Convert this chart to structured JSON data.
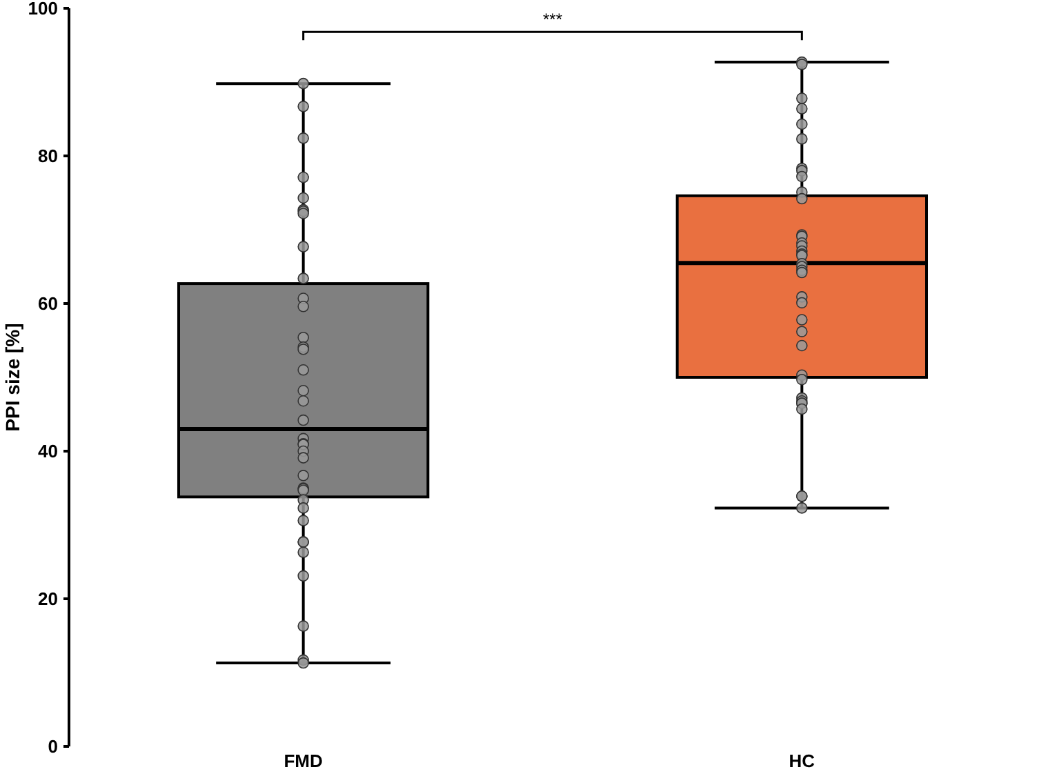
{
  "chart_data": {
    "type": "box",
    "ylabel": "PPI size [%]",
    "categories": [
      "FMD",
      "HC"
    ],
    "colors": [
      "#808080",
      "#e97040"
    ],
    "boxes": [
      {
        "low": 11.3,
        "q1": 33.8,
        "median": 43,
        "q3": 62.7,
        "high": 89.8
      },
      {
        "low": 32.3,
        "q1": 50,
        "median": 65.5,
        "q3": 74.6,
        "high": 92.7
      }
    ],
    "series": [
      {
        "type": "scatter",
        "color": "#9a9a9a",
        "x": [
          "FMD",
          "FMD",
          "FMD",
          "FMD",
          "FMD",
          "FMD",
          "FMD",
          "FMD",
          "FMD",
          "FMD",
          "FMD",
          "FMD",
          "FMD",
          "FMD",
          "FMD",
          "FMD",
          "FMD",
          "FMD",
          "FMD",
          "FMD",
          "FMD",
          "FMD",
          "FMD",
          "FMD",
          "FMD",
          "FMD",
          "FMD",
          "FMD",
          "FMD",
          "FMD",
          "FMD",
          "FMD",
          "FMD",
          "FMD",
          "FMD",
          "FMD",
          "FMD",
          "FMD",
          "HC",
          "HC",
          "HC",
          "HC",
          "HC",
          "HC",
          "HC",
          "HC",
          "HC",
          "HC",
          "HC",
          "HC",
          "HC",
          "HC",
          "HC",
          "HC",
          "HC",
          "HC",
          "HC",
          "HC",
          "HC",
          "HC",
          "HC",
          "HC",
          "HC",
          "HC",
          "HC",
          "HC",
          "HC",
          "HC",
          "HC",
          "HC",
          "HC",
          "HC",
          "HC",
          "HC",
          "HC"
        ],
        "values": [
          89.8,
          86.7,
          82.4,
          77.1,
          74.3,
          72.7,
          72.5,
          72.2,
          67.7,
          63.4,
          60.7,
          59.6,
          55.4,
          54.1,
          53.8,
          51.0,
          48.2,
          46.8,
          44.2,
          41.7,
          41.0,
          40.9,
          40.0,
          39.1,
          36.7,
          35.0,
          34.9,
          34.7,
          33.4,
          32.3,
          30.6,
          27.7,
          27.7,
          26.3,
          23.1,
          16.3,
          11.7,
          11.3,
          92.7,
          92.4,
          87.8,
          86.4,
          84.3,
          82.3,
          78.3,
          78.0,
          77.2,
          75.1,
          74.2,
          69.3,
          69.1,
          68.2,
          67.8,
          67.1,
          66.7,
          66.5,
          65.4,
          65.0,
          64.5,
          64.2,
          60.9,
          60.1,
          57.8,
          56.2,
          54.3,
          50.3,
          49.7,
          47.2,
          46.8,
          46.5,
          46.5,
          45.7,
          33.9,
          33.9,
          32.3
        ]
      }
    ],
    "ylim": [
      0,
      100
    ],
    "yticks": [
      0,
      20,
      40,
      60,
      80,
      100
    ],
    "marker": "circle",
    "annotations": [
      "***"
    ]
  }
}
